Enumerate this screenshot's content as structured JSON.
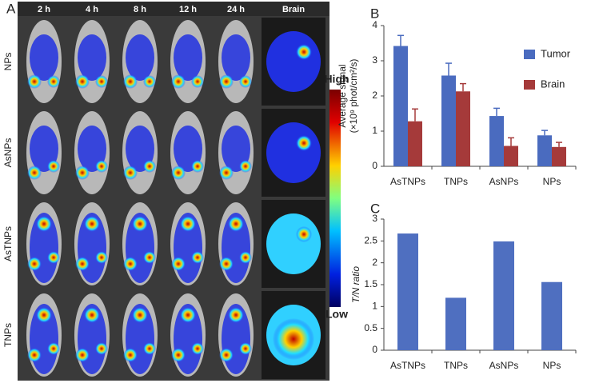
{
  "panel_a": {
    "label": "A",
    "times": [
      "2 h",
      "4 h",
      "8 h",
      "12 h",
      "24 h"
    ],
    "brain": "Brain",
    "groups": [
      "NPs",
      "AsNPs",
      "AsTNPs",
      "TNPs"
    ],
    "scale_high": "High",
    "scale_low": "Low"
  },
  "chart_data": [
    {
      "type": "bar",
      "panel": "B",
      "ylabel": [
        "Average signal",
        "(×10⁹ phot/cm²/s)"
      ],
      "categories": [
        "AsTNPs",
        "TNPs",
        "AsNPs",
        "NPs"
      ],
      "series": [
        {
          "name": "Tumor",
          "color": "#4a6bbf",
          "values": [
            3.42,
            2.58,
            1.43,
            0.88
          ],
          "errors": [
            0.3,
            0.35,
            0.22,
            0.14
          ]
        },
        {
          "name": "Brain",
          "color": "#a53a3a",
          "values": [
            1.28,
            2.13,
            0.58,
            0.55
          ],
          "errors": [
            0.35,
            0.22,
            0.23,
            0.13
          ]
        }
      ],
      "ylim": [
        0,
        4
      ],
      "yticks": [
        0,
        1,
        2,
        3,
        4
      ],
      "legend": "upper right"
    },
    {
      "type": "bar",
      "panel": "C",
      "ylabel": [
        "T/N ratio"
      ],
      "categories": [
        "AsTNPs",
        "TNPs",
        "AsNPs",
        "NPs"
      ],
      "values": [
        2.67,
        1.2,
        2.49,
        1.56
      ],
      "color": "#4f6fc0",
      "ylim": [
        0,
        3
      ],
      "yticks": [
        0,
        0.5,
        1,
        1.5,
        2,
        2.5,
        3
      ]
    }
  ]
}
